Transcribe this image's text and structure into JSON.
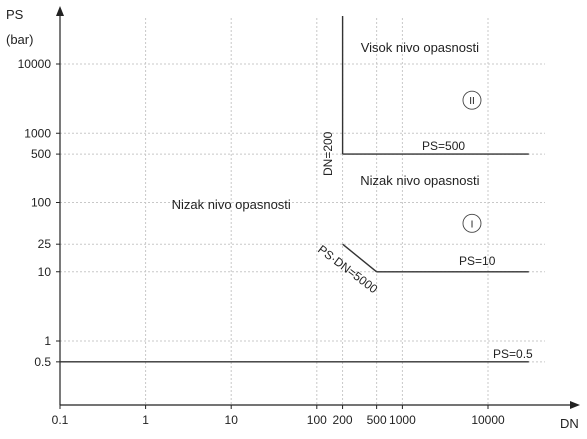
{
  "chart_data": {
    "type": "line",
    "xlabel": "DN",
    "ylabel": "PS",
    "ylabel_unit": "(bar)",
    "x_scale": "log",
    "y_scale": "log",
    "xlim": [
      0.1,
      30000
    ],
    "ylim": [
      0.5,
      100000
    ],
    "grid": true,
    "x_ticks": [
      {
        "value": 0.1,
        "label": "0.1"
      },
      {
        "value": 1,
        "label": "1"
      },
      {
        "value": 10,
        "label": "10"
      },
      {
        "value": 100,
        "label": "100"
      },
      {
        "value": 200,
        "label": "200"
      },
      {
        "value": 500,
        "label": "500"
      },
      {
        "value": 1000,
        "label": "1000"
      },
      {
        "value": 10000,
        "label": "10000"
      }
    ],
    "y_ticks": [
      {
        "value": 0.5,
        "label": "0.5"
      },
      {
        "value": 1,
        "label": "1"
      },
      {
        "value": 10,
        "label": "10"
      },
      {
        "value": 25,
        "label": "25"
      },
      {
        "value": 100,
        "label": "100"
      },
      {
        "value": 500,
        "label": "500"
      },
      {
        "value": 1000,
        "label": "1000"
      },
      {
        "value": 10000,
        "label": "10000"
      }
    ],
    "series": [
      {
        "label": "DN=200",
        "points": [
          [
            200,
            500
          ],
          [
            200,
            100000
          ]
        ]
      },
      {
        "label": "PS=500",
        "points": [
          [
            200,
            500
          ],
          [
            30000,
            500
          ]
        ]
      },
      {
        "label": "PS·DN=5000",
        "points": [
          [
            200,
            25
          ],
          [
            500,
            10
          ]
        ]
      },
      {
        "label": "PS=10",
        "points": [
          [
            500,
            10
          ],
          [
            30000,
            10
          ]
        ]
      },
      {
        "label": "PS=0.5",
        "points": [
          [
            0.1,
            0.5
          ],
          [
            30000,
            0.5
          ]
        ]
      }
    ],
    "region_labels": [
      {
        "text": "Visok nivo opasnosti",
        "x": 1600,
        "y": 15000
      },
      {
        "text": "Nizak nivo opasnosti",
        "x": 1600,
        "y": 180
      },
      {
        "text": "Nizak nivo opasnosti",
        "x": 10,
        "y": 80
      }
    ],
    "zone_markers": [
      {
        "text": "II",
        "x": 6500,
        "y": 3000
      },
      {
        "text": "I",
        "x": 6500,
        "y": 50
      }
    ]
  }
}
